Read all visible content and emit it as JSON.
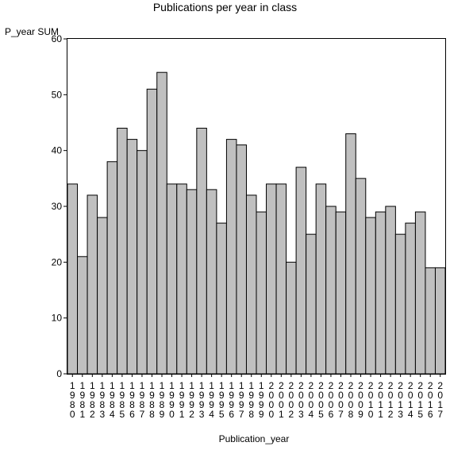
{
  "chart_data": {
    "type": "bar",
    "title": "Publications per year in class",
    "xlabel": "Publication_year",
    "ylabel": "P_year SUM",
    "ylim": [
      0,
      60
    ],
    "yticks": [
      0,
      10,
      20,
      30,
      40,
      50,
      60
    ],
    "grid": false,
    "categories": [
      "1980",
      "1981",
      "1982",
      "1983",
      "1984",
      "1985",
      "1986",
      "1987",
      "1988",
      "1989",
      "1990",
      "1991",
      "1992",
      "1993",
      "1994",
      "1995",
      "1996",
      "1997",
      "1998",
      "1999",
      "2000",
      "2001",
      "2002",
      "2003",
      "2004",
      "2005",
      "2006",
      "2007",
      "2008",
      "2009",
      "2010",
      "2011",
      "2012",
      "2013",
      "2014",
      "2015",
      "2016",
      "2017"
    ],
    "values": [
      34,
      21,
      32,
      28,
      38,
      44,
      42,
      40,
      51,
      54,
      34,
      34,
      33,
      44,
      33,
      27,
      42,
      41,
      32,
      29,
      34,
      34,
      20,
      37,
      25,
      34,
      30,
      29,
      43,
      35,
      28,
      29,
      30,
      25,
      27,
      29,
      19,
      19
    ],
    "colors": {
      "bar_fill": "#c0c0c0",
      "bar_stroke": "#000000"
    }
  }
}
